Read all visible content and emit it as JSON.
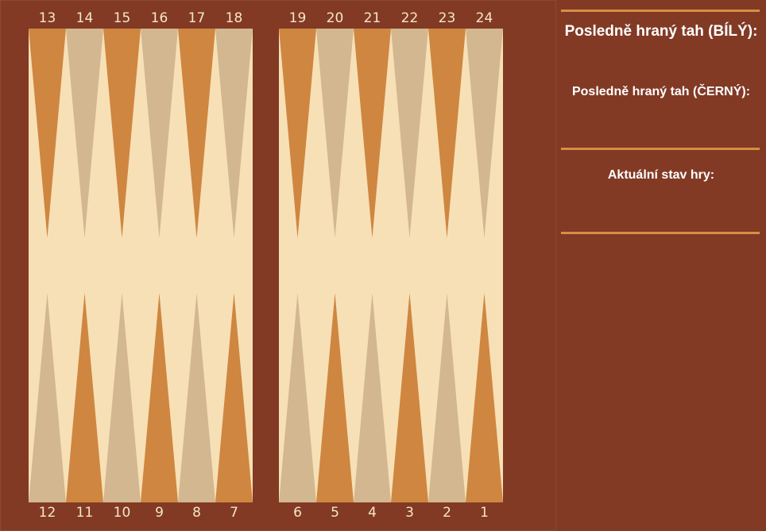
{
  "board": {
    "colors": {
      "frame": "#823a25",
      "field": "#f7e0b6",
      "point_dark": "#cf8640",
      "point_light": "#d2b791",
      "numbers": "#f5e6c8"
    },
    "top_left_points": [
      "13",
      "14",
      "15",
      "16",
      "17",
      "18"
    ],
    "top_right_points": [
      "19",
      "20",
      "21",
      "22",
      "23",
      "24"
    ],
    "bottom_left_points": [
      "12",
      "11",
      "10",
      "9",
      "8",
      "7"
    ],
    "bottom_right_points": [
      "6",
      "5",
      "4",
      "3",
      "2",
      "1"
    ]
  },
  "panel": {
    "last_move_white_label": "Posledně hraný tah (BÍLÝ):",
    "last_move_black_label": "Posledně hraný tah (ČERNÝ):",
    "game_state_label": "Aktuální stav hry:",
    "divider_color": "#d88e45"
  }
}
